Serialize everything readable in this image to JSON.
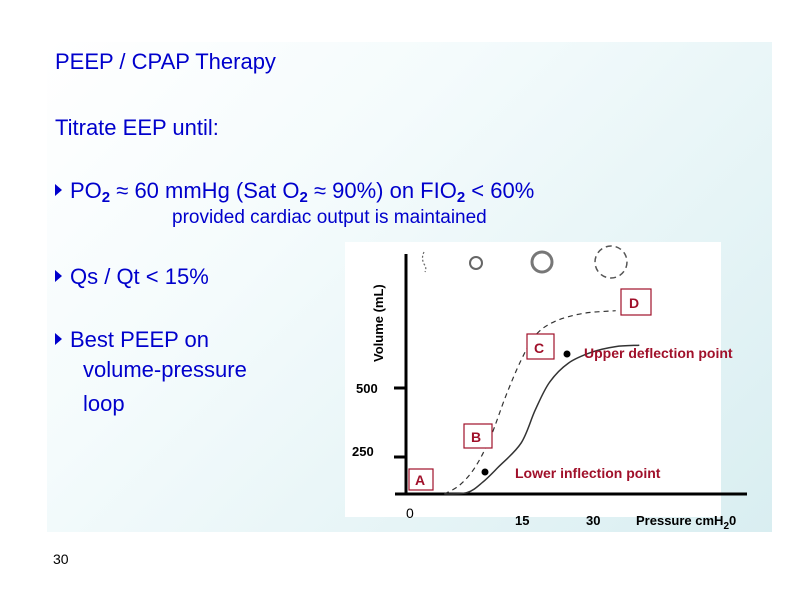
{
  "slide": {
    "title": "PEEP  /  CPAP  Therapy",
    "subtitle": "Titrate EEP  until:",
    "bullet1": {
      "p1": "PO",
      "s1": "2",
      "p2": " ≈  60 mmHg (Sat O",
      "s2": "2",
      "p3": " ≈ 90%) on FIO",
      "s3": "2",
      "p4": " < 60%",
      "note": "provided cardiac output is maintained"
    },
    "bullet2": "Qs / Qt   <  15%",
    "bullet3": [
      "Best PEEP on",
      "volume-pressure",
      "loop"
    ],
    "page_number": "30"
  },
  "chart_data": {
    "type": "line",
    "ylabel": "Volume (mL)",
    "xlabel_main": "Pressure cmH",
    "xlabel_sub": "2",
    "xlabel_tail": "0",
    "origin_label": "0",
    "xticks": [
      "15",
      "30"
    ],
    "yticks": [
      "250",
      "500"
    ],
    "series": [
      {
        "style": "solid",
        "points": [
          [
            5,
            0
          ],
          [
            8,
            10
          ],
          [
            10,
            80
          ],
          [
            12,
            180
          ],
          [
            15,
            300
          ],
          [
            18,
            420
          ],
          [
            21,
            520
          ],
          [
            25,
            590
          ],
          [
            30,
            630
          ],
          [
            35,
            650
          ],
          [
            40,
            655
          ]
        ]
      },
      {
        "style": "dashed",
        "points": [
          [
            5,
            0
          ],
          [
            7,
            60
          ],
          [
            9,
            180
          ],
          [
            11,
            320
          ],
          [
            13,
            470
          ],
          [
            15,
            600
          ],
          [
            18,
            690
          ],
          [
            22,
            740
          ],
          [
            28,
            770
          ],
          [
            35,
            780
          ]
        ]
      }
    ],
    "boxes": [
      "A",
      "B",
      "C",
      "D"
    ],
    "annotations": [
      "Upper deflection point",
      "Lower inflection point"
    ],
    "colors": {
      "annotation": "#a0102a",
      "box_border": "#a0102a",
      "text": "#0000cc"
    }
  }
}
